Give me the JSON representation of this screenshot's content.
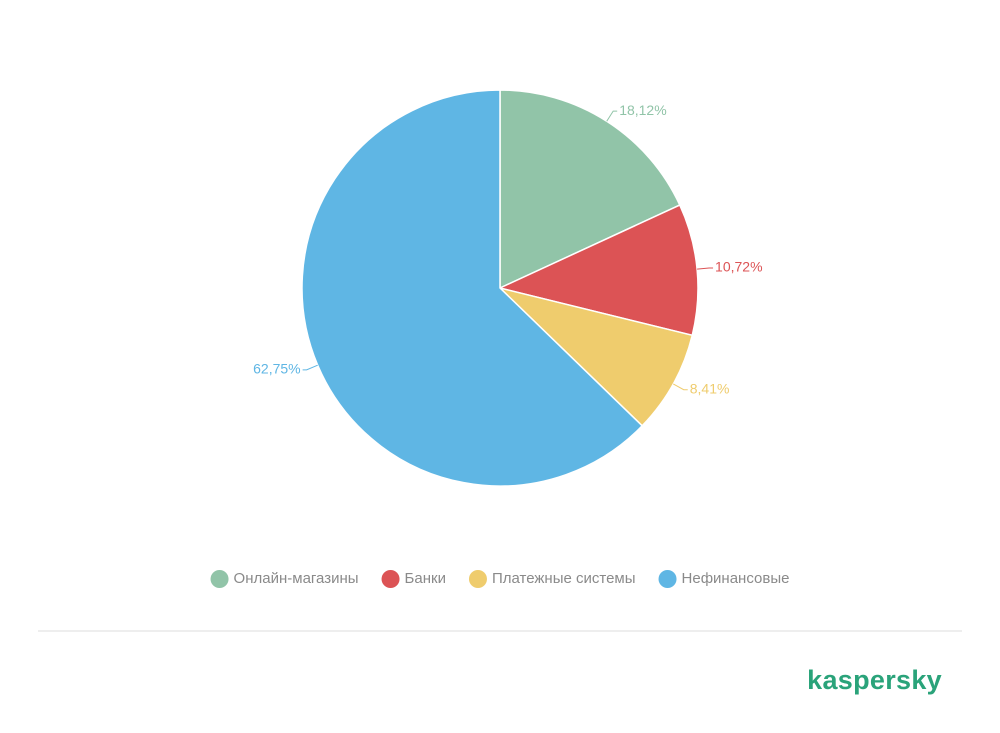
{
  "chart_data": {
    "type": "pie",
    "categories": [
      "Онлайн-магазины",
      "Банки",
      "Платежные системы",
      "Нефинансовые"
    ],
    "values": [
      18.12,
      10.72,
      8.41,
      62.75
    ],
    "value_labels": [
      "18,12%",
      "10,72%",
      "8,41%",
      "62,75%"
    ],
    "colors": [
      "#91c4a8",
      "#dc5355",
      "#efcc6d",
      "#5fb6e4"
    ],
    "legend": "bottom"
  },
  "brand": "kaspersky"
}
